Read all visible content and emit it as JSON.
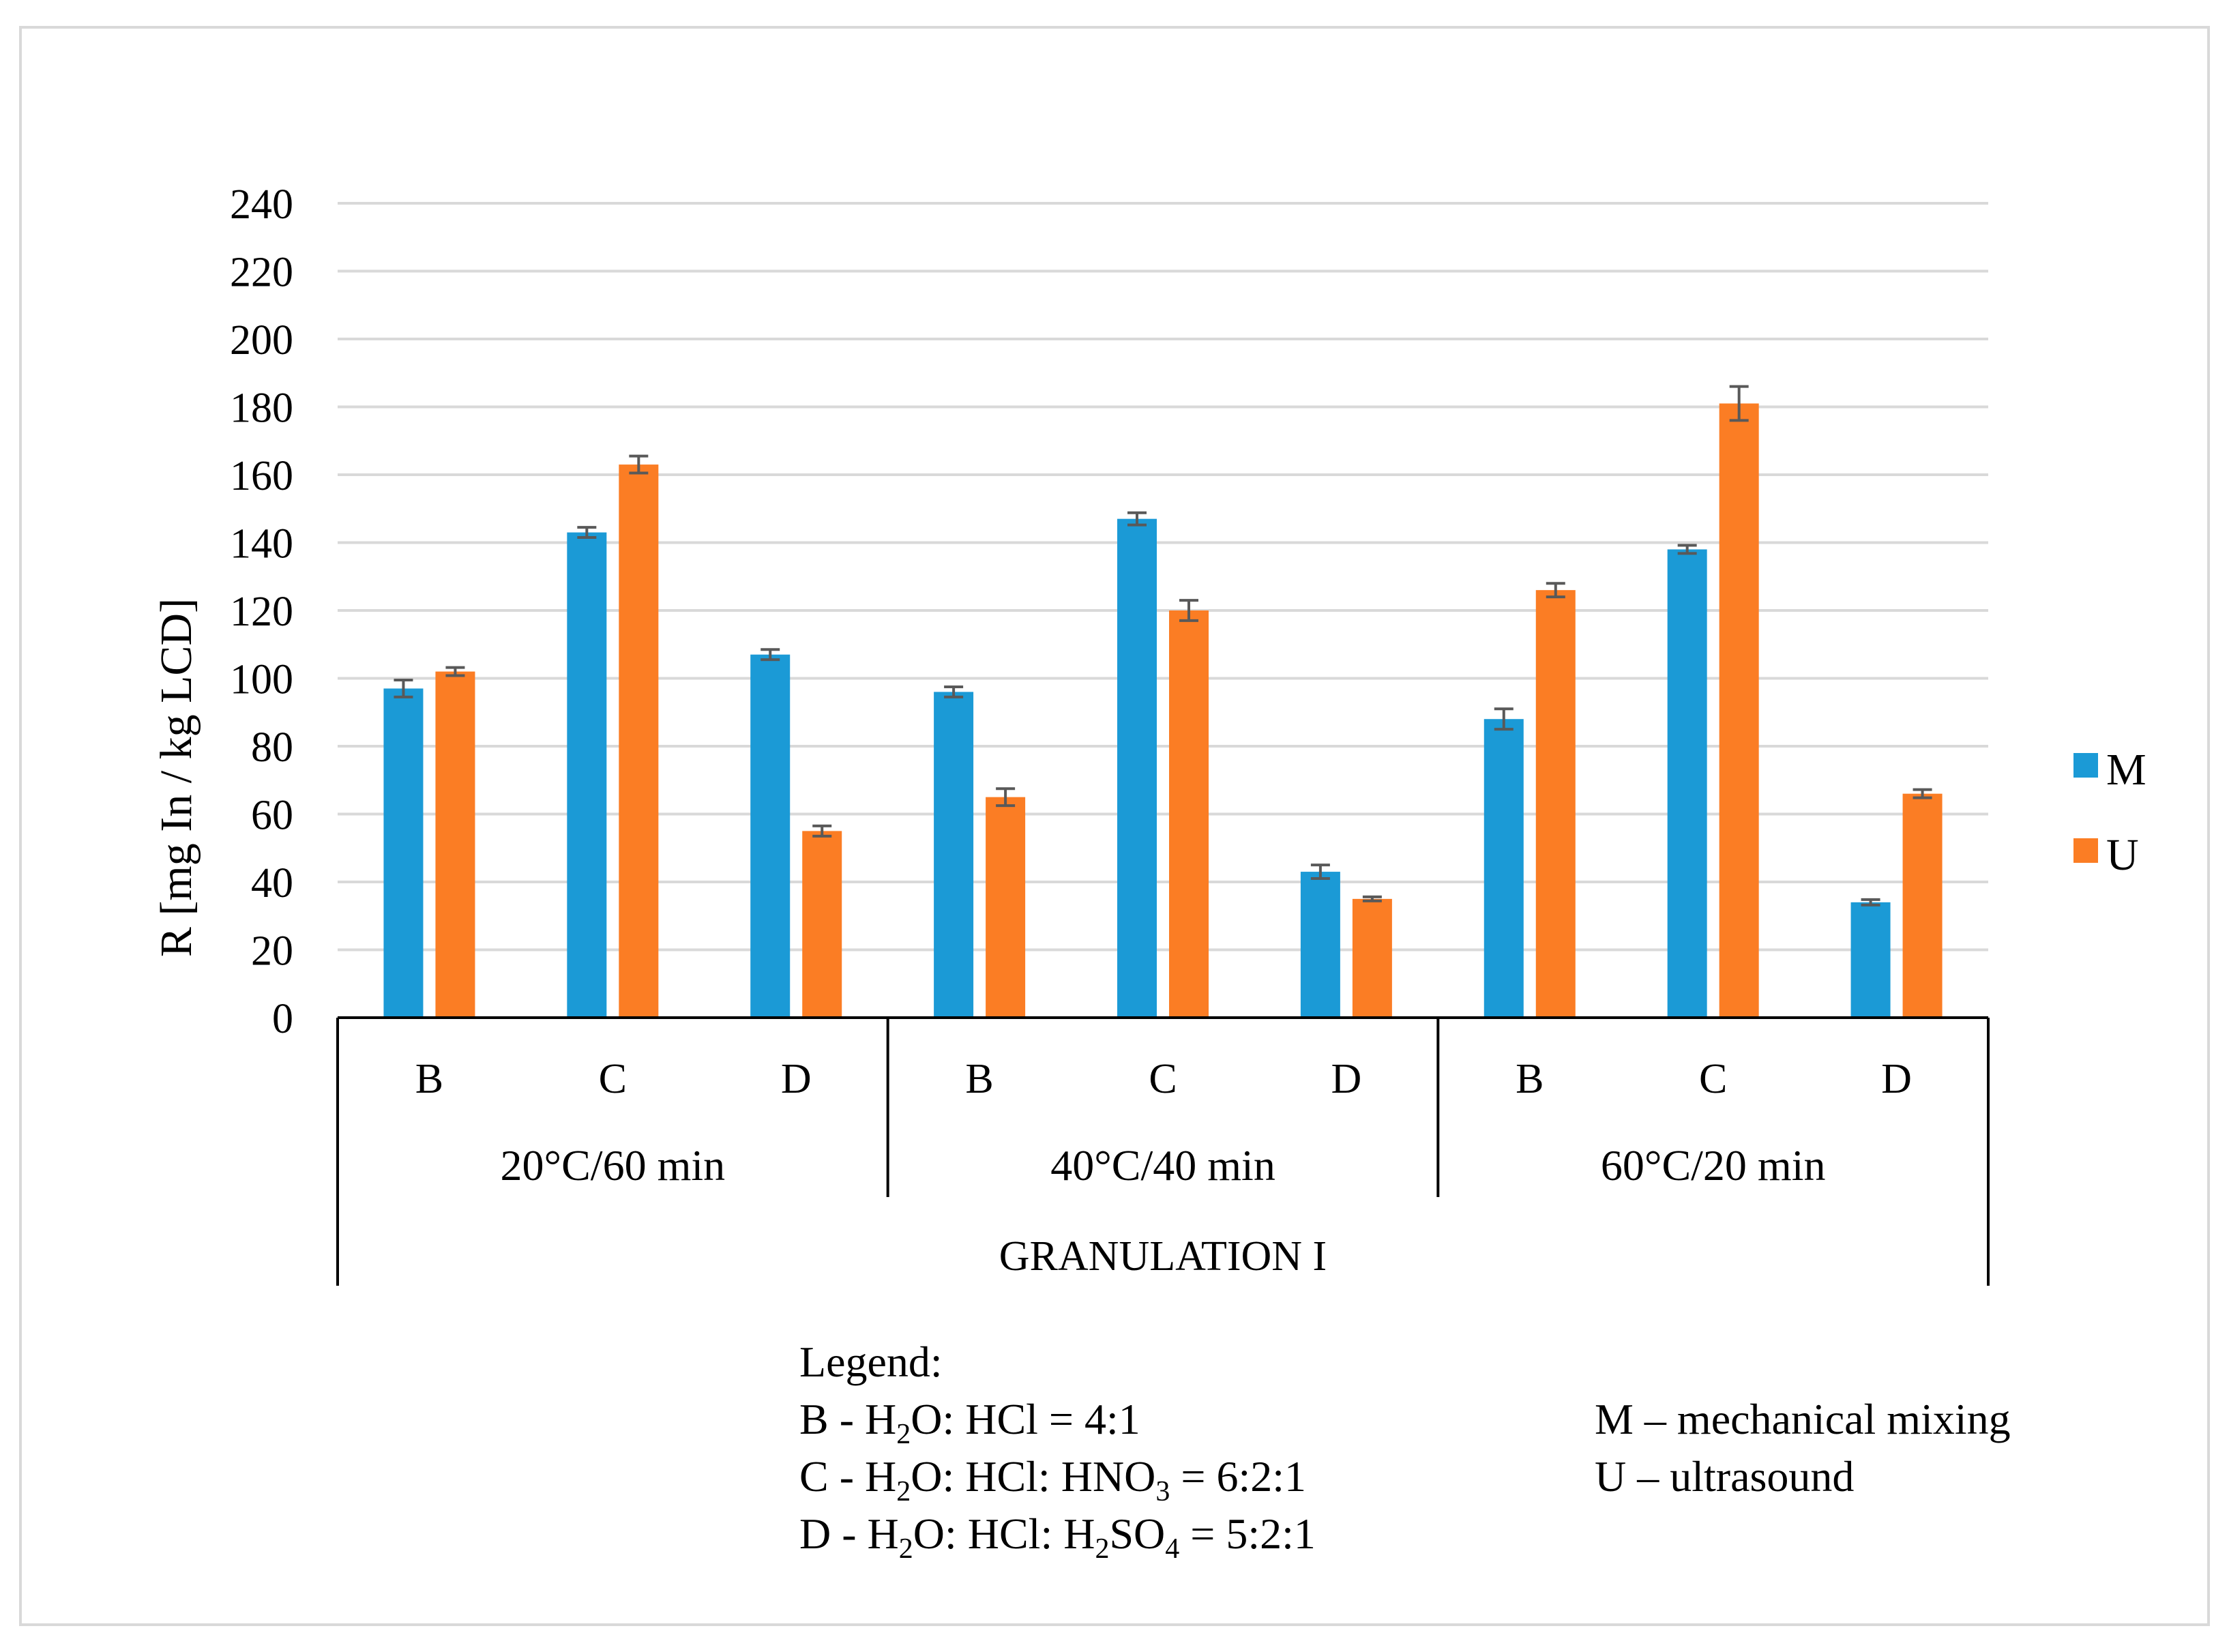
{
  "chart_data": {
    "type": "bar",
    "ylabel": "R [mg In / kg LCD]",
    "ylim": [
      0,
      240
    ],
    "yticks": [
      0,
      20,
      40,
      60,
      80,
      100,
      120,
      140,
      160,
      180,
      200,
      220,
      240
    ],
    "grid": true,
    "group_label": "GRANULATION I",
    "conditions": [
      "20°C/60 min",
      "40°C/40 min",
      "60°C/20 min"
    ],
    "categories": [
      "B",
      "C",
      "D",
      "B",
      "C",
      "D",
      "B",
      "C",
      "D"
    ],
    "series": [
      {
        "name": "M",
        "color": "#1b9ad6",
        "values": [
          97,
          143,
          107,
          96,
          147,
          43,
          88,
          138,
          34
        ],
        "errors": [
          2.5,
          1.5,
          1.5,
          1.5,
          1.8,
          2.0,
          3.0,
          1.2,
          0.8
        ]
      },
      {
        "name": "U",
        "color": "#fb7d24",
        "values": [
          102,
          163,
          55,
          65,
          120,
          35,
          126,
          181,
          66
        ],
        "errors": [
          1.2,
          2.5,
          1.5,
          2.5,
          3.0,
          0.6,
          2.0,
          5.0,
          1.2
        ]
      }
    ],
    "legend_position": "right"
  },
  "legend_text": {
    "heading": "Legend:",
    "B": {
      "prefix": "B - H",
      "sub1": "2",
      "rest": "O: HCl = 4:1"
    },
    "C": {
      "prefix": "C - H",
      "sub1": "2",
      "mid": "O: HCl:  HNO",
      "sub2": "3",
      "rest": " = 6:2:1"
    },
    "D": {
      "prefix": "D - H",
      "sub1": "2",
      "mid": "O: HCl:  H",
      "sub2": "2",
      "mid2": "SO",
      "sub3": "4",
      "rest": " = 5:2:1"
    },
    "M": "M – mechanical  mixing",
    "U": "U – ultrasound"
  }
}
